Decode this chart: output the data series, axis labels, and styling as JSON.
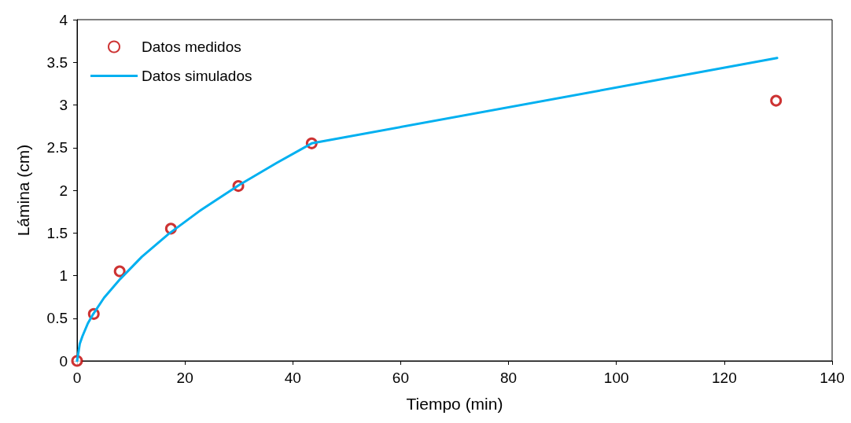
{
  "chart_data": {
    "type": "scatter",
    "xlabel": "Tiempo (min)",
    "ylabel": "Lámina (cm)",
    "xlim": [
      0,
      140
    ],
    "xticks": [
      0,
      20,
      40,
      60,
      80,
      100,
      120,
      140
    ],
    "ylim": [
      0,
      4
    ],
    "yticks": [
      0,
      0.5,
      1,
      1.5,
      2,
      2.5,
      3,
      3.5,
      4
    ],
    "grid": false,
    "legend": "top left",
    "series": [
      {
        "name": "Datos medidos",
        "type": "scatter",
        "marker": "circle",
        "color": "#c00000",
        "x": [
          0,
          3.1,
          7.9,
          17.4,
          29.9,
          43.5,
          129.6
        ],
        "values": [
          0,
          0.55,
          1.05,
          1.55,
          2.05,
          2.55,
          3.05
        ]
      },
      {
        "name": "Datos simulados",
        "type": "line",
        "marker": "none",
        "line_style": "solid",
        "color": "#00b0f0",
        "x": [
          0,
          0.5,
          1,
          2,
          3,
          5,
          8,
          12,
          17,
          23,
          30,
          37,
          43.5,
          129.8
        ],
        "values": [
          0,
          0.2,
          0.29,
          0.44,
          0.55,
          0.74,
          0.96,
          1.22,
          1.49,
          1.77,
          2.06,
          2.32,
          2.55,
          3.55
        ]
      }
    ]
  }
}
